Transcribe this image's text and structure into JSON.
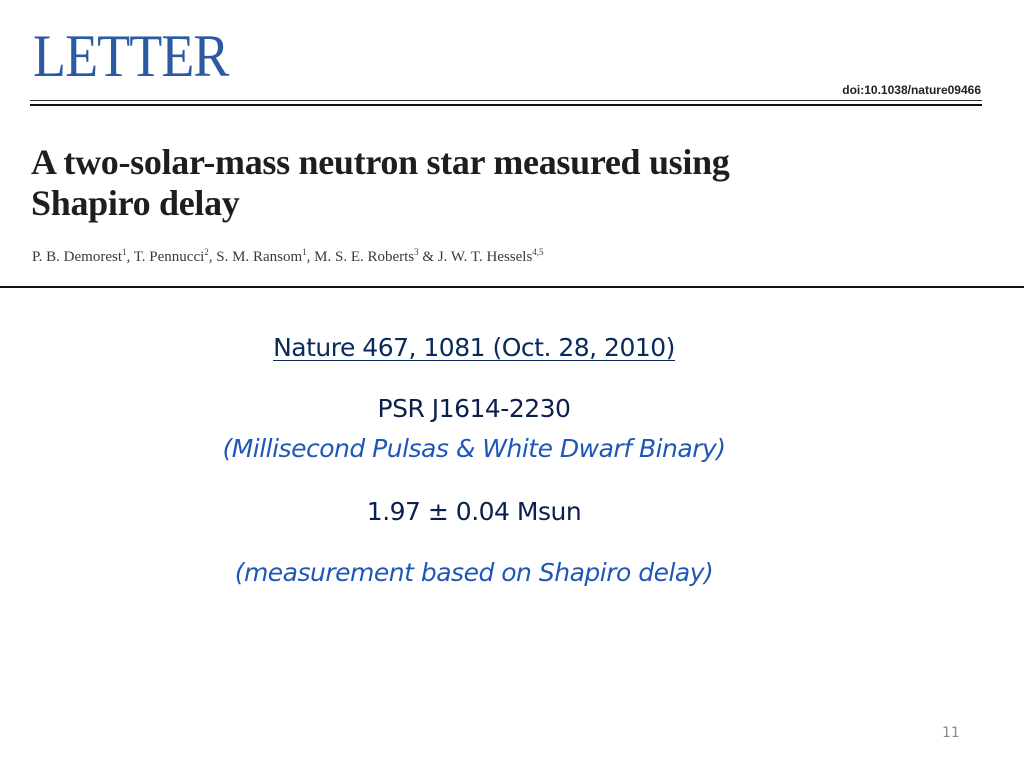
{
  "header": {
    "journal_section": "LETTER",
    "doi": "doi:10.1038/nature09466"
  },
  "paper": {
    "title_line1": "A two-solar-mass neutron star measured using",
    "title_line2": "Shapiro delay",
    "authors": [
      {
        "name": "P. B. Demorest",
        "aff": "1",
        "sep": ", "
      },
      {
        "name": "T. Pennucci",
        "aff": "2",
        "sep": ", "
      },
      {
        "name": "S. M. Ransom",
        "aff": "1",
        "sep": ", "
      },
      {
        "name": "M. S. E. Roberts",
        "aff": "3",
        "sep": " & "
      },
      {
        "name": "J. W. T. Hessels",
        "aff": "4,5",
        "sep": ""
      }
    ]
  },
  "slide": {
    "citation": "Nature 467, 1081 (Oct. 28, 2010)",
    "pulsar": "PSR J1614-2230",
    "pulsar_description": "(Millisecond Pulsas & White Dwarf Binary)",
    "mass": "1.97 ± 0.04 Msun",
    "measurement_note": "(measurement based on Shapiro delay)",
    "page_number": "11"
  }
}
